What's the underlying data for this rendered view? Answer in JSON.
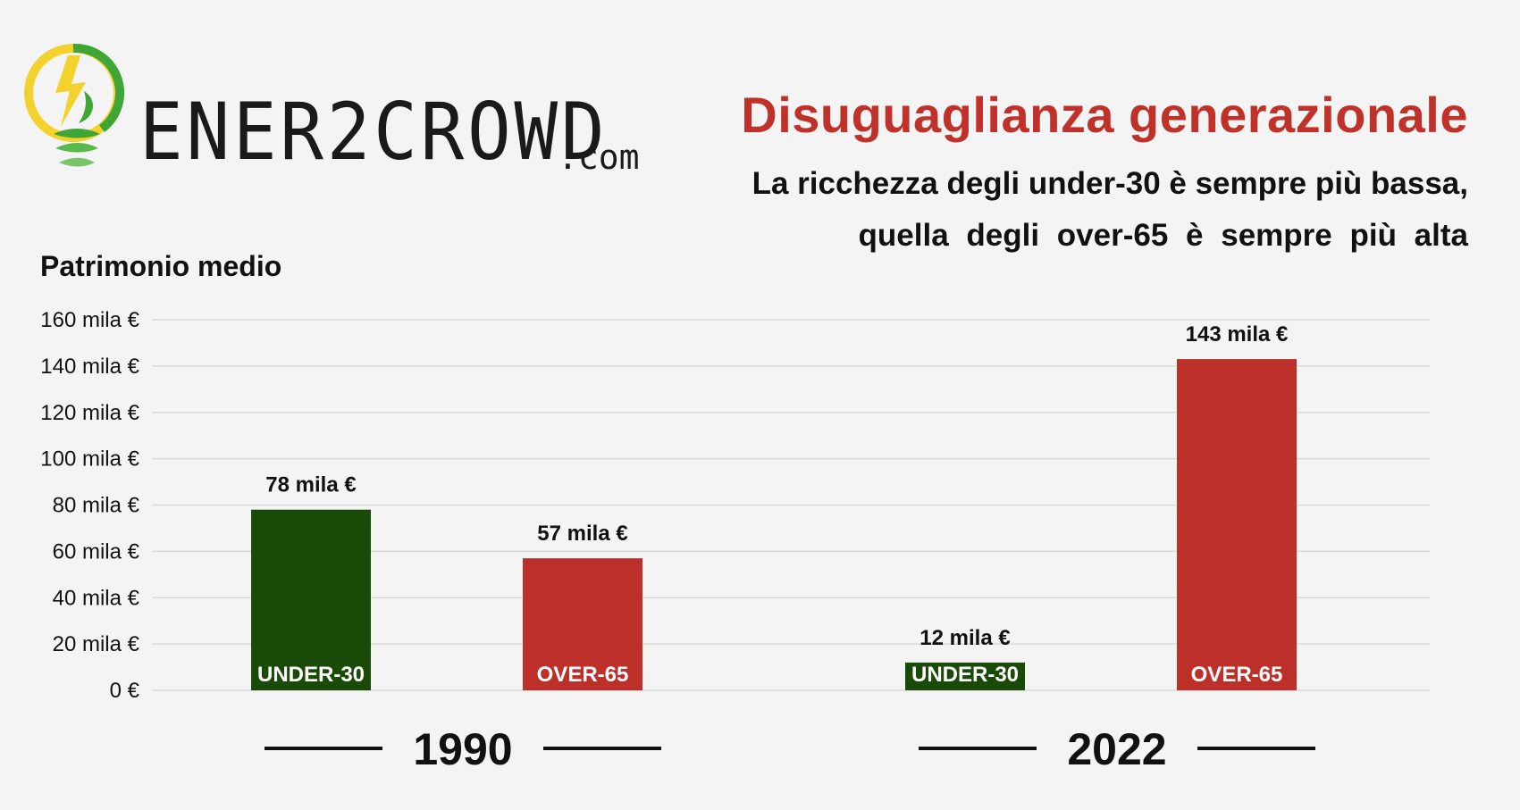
{
  "brand": {
    "name": "ENER2CROWD",
    "suffix": ".com",
    "colors": {
      "bolt": "#f2d22b",
      "leaf": "#3fa535",
      "text": "#1a1a1a"
    }
  },
  "header": {
    "title": "Disuguaglianza generazionale",
    "subtitle_line1": "La ricchezza degli under-30 è sempre più bassa,",
    "subtitle_line2": "quella degli over-65 è sempre più alta"
  },
  "chart_data": {
    "type": "bar",
    "ylabel": "Patrimonio medio",
    "ylim": [
      0,
      160
    ],
    "yticks": [
      0,
      20,
      40,
      60,
      80,
      100,
      120,
      140,
      160
    ],
    "ytick_labels": [
      "0 €",
      "20 mila €",
      "40 mila €",
      "60 mila €",
      "80 mila €",
      "100 mila €",
      "120 mila €",
      "140 mila €",
      "160 mila €"
    ],
    "grid": true,
    "groups": [
      "1990",
      "2022"
    ],
    "series": [
      {
        "name": "UNDER-30",
        "color": "#1a4a08",
        "values": [
          78,
          12
        ],
        "labels": [
          "78 mila €",
          "12 mila €"
        ]
      },
      {
        "name": "OVER-65",
        "color": "#bd302a",
        "values": [
          57,
          143
        ],
        "labels": [
          "57 mila €",
          "143 mila €"
        ]
      }
    ]
  }
}
